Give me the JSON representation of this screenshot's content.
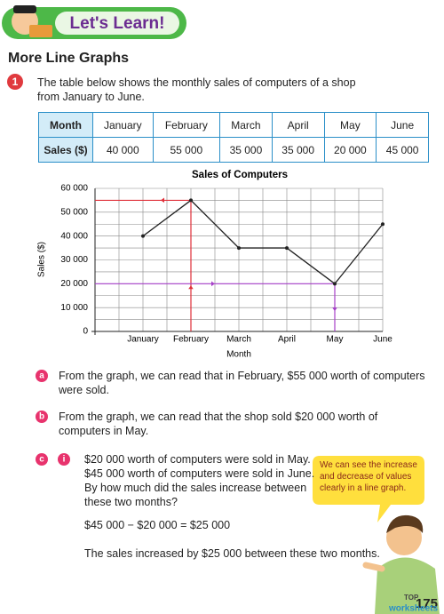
{
  "header": {
    "banner": "Let's Learn!"
  },
  "section_title": "More Line Graphs",
  "question": {
    "number": "1",
    "text": "The table below shows the monthly sales of computers of a shop from January to June."
  },
  "table": {
    "rows": [
      [
        "Month",
        "January",
        "February",
        "March",
        "April",
        "May",
        "June"
      ],
      [
        "Sales ($)",
        "40 000",
        "55 000",
        "35 000",
        "35 000",
        "20 000",
        "45 000"
      ]
    ]
  },
  "chart_data": {
    "type": "line",
    "title": "Sales of Computers",
    "x_label": "Month",
    "y_label": "Sales ($)",
    "categories": [
      "January",
      "February",
      "March",
      "April",
      "May",
      "June"
    ],
    "values": [
      40000,
      55000,
      35000,
      35000,
      20000,
      45000
    ],
    "color": "#222222",
    "ylim": [
      0,
      60000
    ],
    "yticks": [
      {
        "value": 0,
        "label": "0"
      },
      {
        "value": 10000,
        "label": "10 000"
      },
      {
        "value": 20000,
        "label": "20 000"
      },
      {
        "value": 30000,
        "label": "30 000"
      },
      {
        "value": 40000,
        "label": "40 000"
      },
      {
        "value": 50000,
        "label": "50 000"
      },
      {
        "value": 60000,
        "label": "60 000"
      }
    ],
    "grid": true
  },
  "items": [
    {
      "label": "a",
      "text": "From the graph, we can read that in February, $55 000 worth of computers were sold."
    },
    {
      "label": "b",
      "text": "From the graph, we can read that the shop sold $20 000 worth of computers in May."
    },
    {
      "label": "c",
      "sub_label": "i",
      "lines": [
        "$20 000 worth of computers were sold in May.",
        "$45 000 worth of computers were sold in June.",
        "By how much did the sales increase between these two months?",
        "$45 000 − $20 000 = $25 000",
        "The sales increased by $25 000 between these two months."
      ]
    }
  ],
  "speech_bubble": "We can see the increase and decrease of values clearly in a line graph.",
  "page_number": "175",
  "logo": [
    "TOP",
    "worksheets"
  ]
}
